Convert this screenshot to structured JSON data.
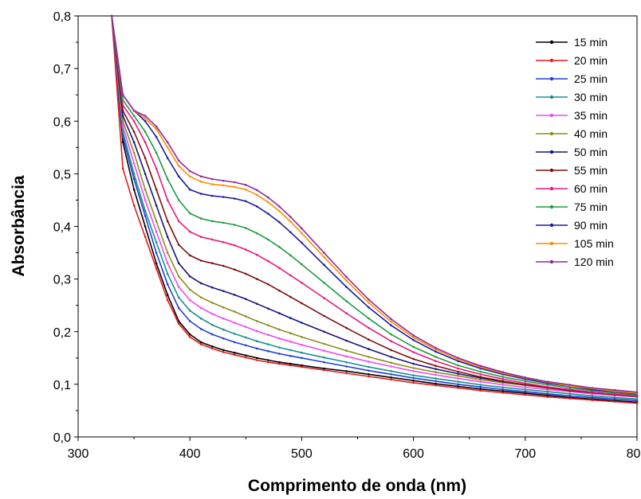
{
  "chart_data": {
    "type": "line",
    "title": "",
    "xlabel": "Comprimento de onda (nm)",
    "ylabel": "Absorbância",
    "xlim": [
      300,
      800
    ],
    "ylim": [
      0.0,
      0.8
    ],
    "x_ticks": [
      "300",
      "400",
      "500",
      "600",
      "700",
      "800"
    ],
    "y_ticks": [
      "0,0",
      "0,1",
      "0,2",
      "0,3",
      "0,4",
      "0,5",
      "0,6",
      "0,7",
      "0,8"
    ],
    "grid": false,
    "legend_position": "top-right",
    "x": [
      330,
      340,
      350,
      360,
      370,
      380,
      390,
      400,
      410,
      420,
      430,
      440,
      450,
      460,
      470,
      480,
      490,
      500,
      520,
      540,
      560,
      580,
      600,
      620,
      640,
      660,
      680,
      700,
      720,
      740,
      760,
      780,
      800
    ],
    "series": [
      {
        "name": "15 min",
        "color": "#000000",
        "values": [
          0.8,
          0.56,
          0.47,
          0.4,
          0.33,
          0.27,
          0.22,
          0.195,
          0.18,
          0.172,
          0.165,
          0.16,
          0.155,
          0.15,
          0.146,
          0.142,
          0.139,
          0.136,
          0.13,
          0.125,
          0.119,
          0.113,
          0.107,
          0.101,
          0.096,
          0.091,
          0.087,
          0.083,
          0.079,
          0.075,
          0.072,
          0.069,
          0.066
        ]
      },
      {
        "name": "20 min",
        "color": "#e41a1c",
        "values": [
          0.8,
          0.51,
          0.44,
          0.38,
          0.32,
          0.26,
          0.215,
          0.19,
          0.176,
          0.168,
          0.161,
          0.156,
          0.151,
          0.146,
          0.142,
          0.139,
          0.136,
          0.133,
          0.127,
          0.121,
          0.115,
          0.109,
          0.103,
          0.098,
          0.093,
          0.088,
          0.084,
          0.08,
          0.076,
          0.073,
          0.07,
          0.067,
          0.064
        ]
      },
      {
        "name": "25 min",
        "color": "#1f3fd8",
        "values": [
          0.8,
          0.57,
          0.49,
          0.42,
          0.35,
          0.29,
          0.245,
          0.22,
          0.205,
          0.195,
          0.187,
          0.18,
          0.174,
          0.168,
          0.163,
          0.158,
          0.154,
          0.15,
          0.142,
          0.134,
          0.126,
          0.119,
          0.112,
          0.106,
          0.1,
          0.095,
          0.09,
          0.086,
          0.082,
          0.078,
          0.075,
          0.072,
          0.069
        ]
      },
      {
        "name": "30 min",
        "color": "#1a8f8f",
        "values": [
          0.8,
          0.58,
          0.5,
          0.43,
          0.37,
          0.31,
          0.265,
          0.24,
          0.225,
          0.213,
          0.204,
          0.196,
          0.189,
          0.182,
          0.176,
          0.17,
          0.165,
          0.16,
          0.151,
          0.142,
          0.133,
          0.125,
          0.117,
          0.111,
          0.105,
          0.099,
          0.094,
          0.09,
          0.086,
          0.082,
          0.078,
          0.075,
          0.072
        ]
      },
      {
        "name": "35 min",
        "color": "#ee4aee",
        "values": [
          0.8,
          0.59,
          0.52,
          0.45,
          0.39,
          0.33,
          0.285,
          0.26,
          0.245,
          0.234,
          0.225,
          0.217,
          0.209,
          0.201,
          0.194,
          0.187,
          0.181,
          0.175,
          0.164,
          0.153,
          0.143,
          0.134,
          0.125,
          0.118,
          0.111,
          0.105,
          0.099,
          0.094,
          0.09,
          0.086,
          0.082,
          0.079,
          0.076
        ]
      },
      {
        "name": "40 min",
        "color": "#8c8c1e",
        "values": [
          0.8,
          0.6,
          0.54,
          0.47,
          0.41,
          0.35,
          0.305,
          0.28,
          0.265,
          0.255,
          0.246,
          0.238,
          0.229,
          0.22,
          0.212,
          0.204,
          0.197,
          0.19,
          0.177,
          0.164,
          0.152,
          0.141,
          0.131,
          0.123,
          0.116,
          0.109,
          0.103,
          0.098,
          0.093,
          0.089,
          0.085,
          0.081,
          0.078
        ]
      },
      {
        "name": "50 min",
        "color": "#16167a",
        "values": [
          0.8,
          0.61,
          0.56,
          0.5,
          0.44,
          0.38,
          0.33,
          0.305,
          0.292,
          0.284,
          0.277,
          0.27,
          0.262,
          0.253,
          0.244,
          0.235,
          0.226,
          0.217,
          0.2,
          0.183,
          0.167,
          0.152,
          0.139,
          0.129,
          0.12,
          0.112,
          0.105,
          0.099,
          0.094,
          0.089,
          0.085,
          0.081,
          0.078
        ]
      },
      {
        "name": "55 min",
        "color": "#7a1010",
        "values": [
          0.8,
          0.62,
          0.58,
          0.53,
          0.47,
          0.41,
          0.365,
          0.345,
          0.335,
          0.33,
          0.325,
          0.318,
          0.31,
          0.3,
          0.29,
          0.278,
          0.266,
          0.254,
          0.23,
          0.207,
          0.185,
          0.165,
          0.148,
          0.135,
          0.124,
          0.114,
          0.106,
          0.099,
          0.093,
          0.088,
          0.084,
          0.08,
          0.077
        ]
      },
      {
        "name": "60 min",
        "color": "#e8187a",
        "values": [
          0.8,
          0.63,
          0.6,
          0.56,
          0.51,
          0.45,
          0.41,
          0.39,
          0.38,
          0.375,
          0.37,
          0.364,
          0.356,
          0.346,
          0.334,
          0.321,
          0.307,
          0.293,
          0.264,
          0.235,
          0.207,
          0.182,
          0.161,
          0.144,
          0.13,
          0.119,
          0.11,
          0.102,
          0.095,
          0.09,
          0.085,
          0.081,
          0.078
        ]
      },
      {
        "name": "75 min",
        "color": "#1e9a3e",
        "values": [
          0.8,
          0.64,
          0.61,
          0.58,
          0.54,
          0.49,
          0.45,
          0.425,
          0.415,
          0.41,
          0.407,
          0.403,
          0.397,
          0.387,
          0.375,
          0.361,
          0.345,
          0.328,
          0.293,
          0.258,
          0.225,
          0.195,
          0.171,
          0.152,
          0.136,
          0.124,
          0.114,
          0.106,
          0.099,
          0.093,
          0.088,
          0.084,
          0.08
        ]
      },
      {
        "name": "90 min",
        "color": "#1a1aa6",
        "values": [
          0.8,
          0.65,
          0.62,
          0.6,
          0.57,
          0.53,
          0.495,
          0.47,
          0.462,
          0.458,
          0.456,
          0.453,
          0.448,
          0.438,
          0.424,
          0.408,
          0.389,
          0.369,
          0.327,
          0.285,
          0.246,
          0.212,
          0.184,
          0.162,
          0.144,
          0.13,
          0.119,
          0.11,
          0.102,
          0.096,
          0.09,
          0.086,
          0.082
        ]
      },
      {
        "name": "105 min",
        "color": "#ff8c00",
        "values": [
          0.8,
          0.65,
          0.62,
          0.605,
          0.585,
          0.55,
          0.515,
          0.495,
          0.485,
          0.48,
          0.478,
          0.475,
          0.47,
          0.46,
          0.446,
          0.429,
          0.409,
          0.387,
          0.342,
          0.297,
          0.255,
          0.219,
          0.189,
          0.166,
          0.147,
          0.133,
          0.121,
          0.112,
          0.104,
          0.097,
          0.092,
          0.087,
          0.083
        ]
      },
      {
        "name": "120 min",
        "color": "#8e2a9a",
        "values": [
          0.8,
          0.65,
          0.62,
          0.61,
          0.59,
          0.56,
          0.525,
          0.505,
          0.495,
          0.49,
          0.487,
          0.484,
          0.479,
          0.469,
          0.455,
          0.438,
          0.418,
          0.396,
          0.35,
          0.304,
          0.261,
          0.224,
          0.193,
          0.169,
          0.15,
          0.135,
          0.123,
          0.113,
          0.105,
          0.099,
          0.093,
          0.089,
          0.085
        ]
      }
    ]
  }
}
